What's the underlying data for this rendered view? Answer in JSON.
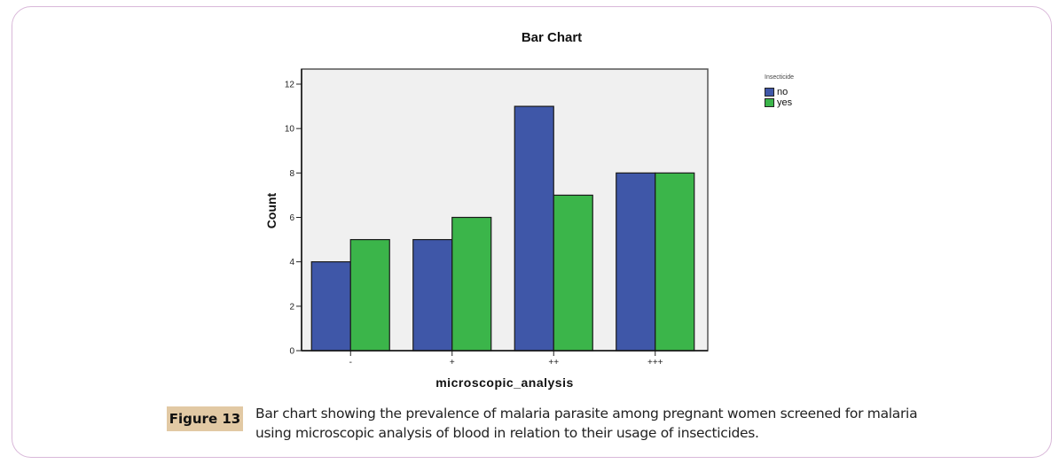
{
  "chart_data": {
    "type": "bar",
    "title": "Bar Chart",
    "xlabel": "microscopic_analysis",
    "ylabel": "Count",
    "categories": [
      "-",
      "+",
      "++",
      "+++"
    ],
    "series": [
      {
        "name": "no",
        "values": [
          4,
          5,
          11,
          8
        ],
        "color": "#3f57a8"
      },
      {
        "name": "yes",
        "values": [
          5,
          6,
          7,
          8
        ],
        "color": "#3bb54a"
      }
    ],
    "ylim": [
      0,
      12.7
    ],
    "yticks": [
      0,
      2,
      4,
      6,
      8,
      10,
      12
    ],
    "grid": false,
    "legend": {
      "title": "Insecticide",
      "position": "top-right"
    },
    "plot_background": "#f0f0f0"
  },
  "caption": {
    "label": "Figure 13",
    "text": "Bar chart showing the prevalence of malaria parasite among pregnant women screened for malaria using microscopic analysis of blood in relation to their usage of insecticides."
  }
}
